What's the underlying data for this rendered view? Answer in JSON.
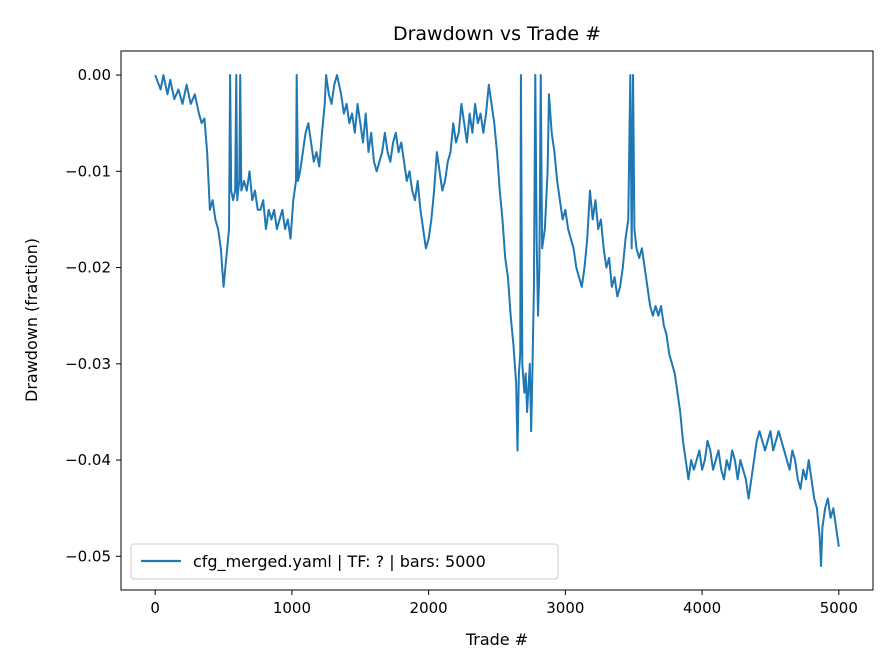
{
  "chart_data": {
    "type": "line",
    "title": "Drawdown vs Trade #",
    "xlabel": "Trade #",
    "ylabel": "Drawdown (fraction)",
    "xlim": [
      -250,
      5250
    ],
    "ylim": [
      -0.0535,
      0.0025
    ],
    "xticks": [
      0,
      1000,
      2000,
      3000,
      4000,
      5000
    ],
    "xtick_labels": [
      "0",
      "1000",
      "2000",
      "3000",
      "4000",
      "5000"
    ],
    "yticks": [
      0.0,
      -0.01,
      -0.02,
      -0.03,
      -0.04,
      -0.05
    ],
    "ytick_labels": [
      "0.00",
      "−0.01",
      "−0.02",
      "−0.03",
      "−0.04",
      "−0.05"
    ],
    "grid": false,
    "legend_position": "lower-left",
    "series": [
      {
        "name": "cfg_merged.yaml | TF: ? | bars: 5000",
        "color": "#1f77b4",
        "points": [
          [
            0,
            0.0
          ],
          [
            40,
            -0.0015
          ],
          [
            60,
            0.0
          ],
          [
            90,
            -0.002
          ],
          [
            110,
            -0.0005
          ],
          [
            140,
            -0.0025
          ],
          [
            170,
            -0.0015
          ],
          [
            200,
            -0.003
          ],
          [
            230,
            -0.001
          ],
          [
            260,
            -0.003
          ],
          [
            290,
            -0.002
          ],
          [
            320,
            -0.004
          ],
          [
            340,
            -0.005
          ],
          [
            360,
            -0.0045
          ],
          [
            380,
            -0.008
          ],
          [
            400,
            -0.014
          ],
          [
            420,
            -0.013
          ],
          [
            440,
            -0.015
          ],
          [
            460,
            -0.016
          ],
          [
            480,
            -0.018
          ],
          [
            500,
            -0.022
          ],
          [
            520,
            -0.019
          ],
          [
            540,
            -0.016
          ],
          [
            548,
            0.0
          ],
          [
            556,
            -0.012
          ],
          [
            570,
            -0.013
          ],
          [
            585,
            -0.012
          ],
          [
            593,
            0.0
          ],
          [
            600,
            -0.013
          ],
          [
            615,
            -0.011
          ],
          [
            622,
            0.0
          ],
          [
            630,
            -0.012
          ],
          [
            650,
            -0.011
          ],
          [
            670,
            -0.012
          ],
          [
            690,
            -0.01
          ],
          [
            710,
            -0.013
          ],
          [
            730,
            -0.012
          ],
          [
            750,
            -0.014
          ],
          [
            770,
            -0.014
          ],
          [
            790,
            -0.013
          ],
          [
            810,
            -0.016
          ],
          [
            830,
            -0.014
          ],
          [
            850,
            -0.015
          ],
          [
            870,
            -0.014
          ],
          [
            890,
            -0.016
          ],
          [
            910,
            -0.015
          ],
          [
            930,
            -0.014
          ],
          [
            950,
            -0.016
          ],
          [
            970,
            -0.015
          ],
          [
            990,
            -0.017
          ],
          [
            1010,
            -0.013
          ],
          [
            1020,
            -0.012
          ],
          [
            1030,
            -0.011
          ],
          [
            1035,
            0.0
          ],
          [
            1045,
            -0.011
          ],
          [
            1060,
            -0.01
          ],
          [
            1080,
            -0.008
          ],
          [
            1100,
            -0.006
          ],
          [
            1120,
            -0.005
          ],
          [
            1140,
            -0.007
          ],
          [
            1160,
            -0.009
          ],
          [
            1180,
            -0.008
          ],
          [
            1200,
            -0.0095
          ],
          [
            1220,
            -0.006
          ],
          [
            1240,
            -0.003
          ],
          [
            1250,
            0.0
          ],
          [
            1270,
            -0.002
          ],
          [
            1290,
            -0.003
          ],
          [
            1310,
            -0.001
          ],
          [
            1330,
            0.0
          ],
          [
            1360,
            -0.002
          ],
          [
            1380,
            -0.004
          ],
          [
            1400,
            -0.003
          ],
          [
            1420,
            -0.005
          ],
          [
            1440,
            -0.004
          ],
          [
            1460,
            -0.006
          ],
          [
            1480,
            -0.003
          ],
          [
            1500,
            -0.005
          ],
          [
            1520,
            -0.007
          ],
          [
            1540,
            -0.004
          ],
          [
            1560,
            -0.008
          ],
          [
            1580,
            -0.006
          ],
          [
            1600,
            -0.009
          ],
          [
            1620,
            -0.01
          ],
          [
            1640,
            -0.009
          ],
          [
            1660,
            -0.008
          ],
          [
            1680,
            -0.006
          ],
          [
            1700,
            -0.008
          ],
          [
            1720,
            -0.009
          ],
          [
            1740,
            -0.007
          ],
          [
            1760,
            -0.006
          ],
          [
            1780,
            -0.008
          ],
          [
            1800,
            -0.007
          ],
          [
            1820,
            -0.009
          ],
          [
            1840,
            -0.011
          ],
          [
            1860,
            -0.01
          ],
          [
            1880,
            -0.012
          ],
          [
            1900,
            -0.013
          ],
          [
            1920,
            -0.011
          ],
          [
            1940,
            -0.014
          ],
          [
            1960,
            -0.016
          ],
          [
            1980,
            -0.018
          ],
          [
            2000,
            -0.017
          ],
          [
            2020,
            -0.015
          ],
          [
            2040,
            -0.012
          ],
          [
            2060,
            -0.008
          ],
          [
            2080,
            -0.01
          ],
          [
            2100,
            -0.012
          ],
          [
            2120,
            -0.011
          ],
          [
            2140,
            -0.009
          ],
          [
            2160,
            -0.008
          ],
          [
            2180,
            -0.005
          ],
          [
            2200,
            -0.007
          ],
          [
            2220,
            -0.006
          ],
          [
            2240,
            -0.003
          ],
          [
            2260,
            -0.005
          ],
          [
            2280,
            -0.007
          ],
          [
            2300,
            -0.004
          ],
          [
            2320,
            -0.006
          ],
          [
            2340,
            -0.003
          ],
          [
            2360,
            -0.005
          ],
          [
            2380,
            -0.004
          ],
          [
            2400,
            -0.006
          ],
          [
            2420,
            -0.004
          ],
          [
            2440,
            -0.001
          ],
          [
            2460,
            -0.003
          ],
          [
            2480,
            -0.005
          ],
          [
            2500,
            -0.008
          ],
          [
            2520,
            -0.012
          ],
          [
            2540,
            -0.015
          ],
          [
            2560,
            -0.019
          ],
          [
            2580,
            -0.021
          ],
          [
            2600,
            -0.025
          ],
          [
            2620,
            -0.028
          ],
          [
            2640,
            -0.032
          ],
          [
            2650,
            -0.039
          ],
          [
            2660,
            -0.031
          ],
          [
            2670,
            -0.029
          ],
          [
            2675,
            0.0
          ],
          [
            2685,
            -0.03
          ],
          [
            2700,
            -0.033
          ],
          [
            2710,
            -0.031
          ],
          [
            2720,
            -0.035
          ],
          [
            2740,
            -0.03
          ],
          [
            2750,
            -0.037
          ],
          [
            2760,
            -0.03
          ],
          [
            2770,
            -0.022
          ],
          [
            2780,
            0.0
          ],
          [
            2790,
            -0.017
          ],
          [
            2800,
            -0.025
          ],
          [
            2810,
            -0.02
          ],
          [
            2820,
            0.0
          ],
          [
            2830,
            -0.018
          ],
          [
            2850,
            -0.016
          ],
          [
            2870,
            -0.01
          ],
          [
            2880,
            -0.002
          ],
          [
            2900,
            -0.006
          ],
          [
            2920,
            -0.008
          ],
          [
            2940,
            -0.011
          ],
          [
            2960,
            -0.013
          ],
          [
            2980,
            -0.015
          ],
          [
            3000,
            -0.014
          ],
          [
            3020,
            -0.016
          ],
          [
            3040,
            -0.017
          ],
          [
            3060,
            -0.018
          ],
          [
            3080,
            -0.02
          ],
          [
            3100,
            -0.021
          ],
          [
            3120,
            -0.022
          ],
          [
            3140,
            -0.02
          ],
          [
            3160,
            -0.017
          ],
          [
            3180,
            -0.012
          ],
          [
            3200,
            -0.015
          ],
          [
            3220,
            -0.013
          ],
          [
            3240,
            -0.016
          ],
          [
            3260,
            -0.015
          ],
          [
            3280,
            -0.018
          ],
          [
            3300,
            -0.02
          ],
          [
            3320,
            -0.019
          ],
          [
            3340,
            -0.022
          ],
          [
            3360,
            -0.021
          ],
          [
            3380,
            -0.023
          ],
          [
            3400,
            -0.022
          ],
          [
            3420,
            -0.02
          ],
          [
            3440,
            -0.017
          ],
          [
            3460,
            -0.015
          ],
          [
            3475,
            0.0
          ],
          [
            3485,
            -0.018
          ],
          [
            3495,
            0.0
          ],
          [
            3505,
            -0.016
          ],
          [
            3520,
            -0.018
          ],
          [
            3540,
            -0.019
          ],
          [
            3560,
            -0.018
          ],
          [
            3580,
            -0.02
          ],
          [
            3600,
            -0.022
          ],
          [
            3620,
            -0.024
          ],
          [
            3640,
            -0.025
          ],
          [
            3660,
            -0.024
          ],
          [
            3680,
            -0.025
          ],
          [
            3700,
            -0.024
          ],
          [
            3720,
            -0.026
          ],
          [
            3740,
            -0.027
          ],
          [
            3760,
            -0.029
          ],
          [
            3780,
            -0.03
          ],
          [
            3800,
            -0.031
          ],
          [
            3820,
            -0.033
          ],
          [
            3840,
            -0.035
          ],
          [
            3860,
            -0.038
          ],
          [
            3880,
            -0.04
          ],
          [
            3900,
            -0.042
          ],
          [
            3920,
            -0.04
          ],
          [
            3940,
            -0.041
          ],
          [
            3960,
            -0.04
          ],
          [
            3980,
            -0.039
          ],
          [
            4000,
            -0.041
          ],
          [
            4020,
            -0.04
          ],
          [
            4040,
            -0.038
          ],
          [
            4060,
            -0.039
          ],
          [
            4080,
            -0.041
          ],
          [
            4100,
            -0.04
          ],
          [
            4120,
            -0.039
          ],
          [
            4140,
            -0.041
          ],
          [
            4160,
            -0.042
          ],
          [
            4180,
            -0.04
          ],
          [
            4200,
            -0.041
          ],
          [
            4220,
            -0.039
          ],
          [
            4240,
            -0.04
          ],
          [
            4260,
            -0.042
          ],
          [
            4280,
            -0.04
          ],
          [
            4300,
            -0.041
          ],
          [
            4320,
            -0.042
          ],
          [
            4340,
            -0.044
          ],
          [
            4360,
            -0.042
          ],
          [
            4380,
            -0.04
          ],
          [
            4400,
            -0.038
          ],
          [
            4420,
            -0.037
          ],
          [
            4440,
            -0.038
          ],
          [
            4460,
            -0.039
          ],
          [
            4480,
            -0.038
          ],
          [
            4500,
            -0.037
          ],
          [
            4520,
            -0.039
          ],
          [
            4540,
            -0.038
          ],
          [
            4560,
            -0.037
          ],
          [
            4580,
            -0.038
          ],
          [
            4600,
            -0.039
          ],
          [
            4620,
            -0.04
          ],
          [
            4640,
            -0.041
          ],
          [
            4660,
            -0.039
          ],
          [
            4680,
            -0.04
          ],
          [
            4700,
            -0.042
          ],
          [
            4720,
            -0.043
          ],
          [
            4740,
            -0.041
          ],
          [
            4760,
            -0.042
          ],
          [
            4780,
            -0.04
          ],
          [
            4800,
            -0.042
          ],
          [
            4820,
            -0.044
          ],
          [
            4840,
            -0.045
          ],
          [
            4860,
            -0.048
          ],
          [
            4870,
            -0.051
          ],
          [
            4880,
            -0.047
          ],
          [
            4900,
            -0.045
          ],
          [
            4920,
            -0.044
          ],
          [
            4940,
            -0.046
          ],
          [
            4960,
            -0.045
          ],
          [
            4980,
            -0.047
          ],
          [
            5000,
            -0.049
          ]
        ]
      }
    ]
  }
}
